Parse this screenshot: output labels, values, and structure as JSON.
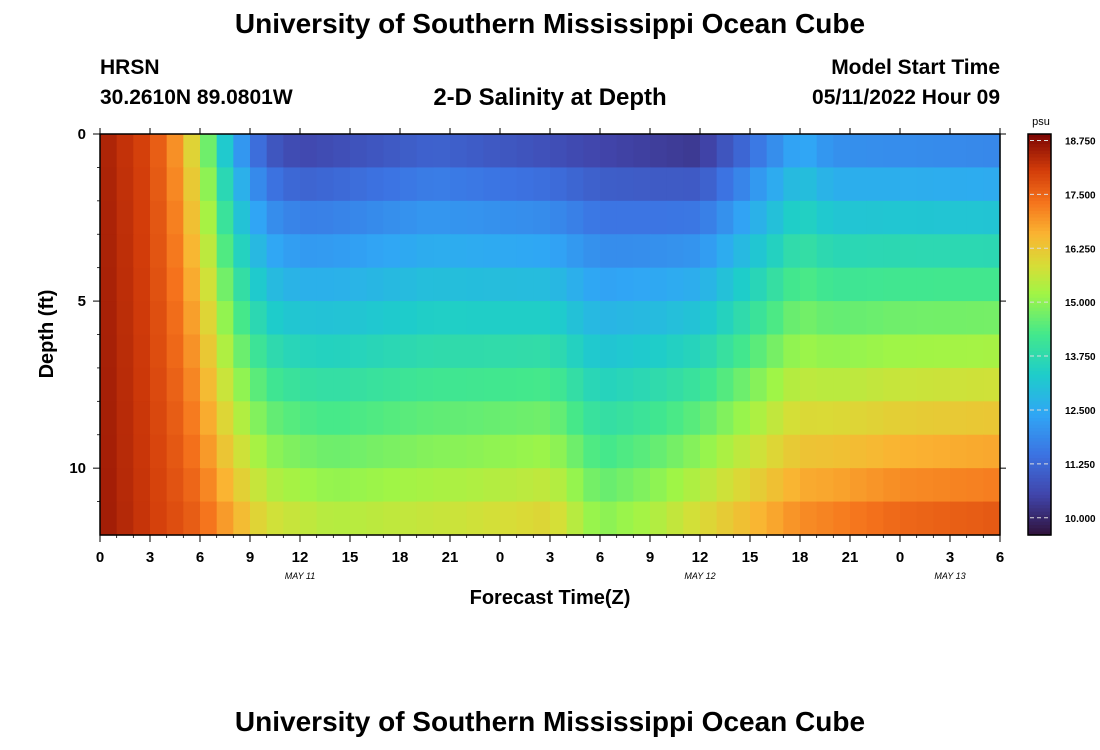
{
  "header": {
    "title": "University of Southern Mississippi Ocean Cube",
    "station": "HRSN",
    "coords": "30.2610N  89.0801W",
    "subtitle": "2-D Salinity at Depth",
    "model_label": "Model Start Time",
    "model_value": "05/11/2022 Hour 09"
  },
  "footer": {
    "title": "University of Southern Mississippi Ocean Cube"
  },
  "chart_data": {
    "type": "heatmap",
    "title": "2-D Salinity at Depth",
    "xlabel": "Forecast Time(Z)",
    "ylabel": "Depth (ft)",
    "x_range_hours": [
      0,
      54
    ],
    "x_start_hour_z": 0,
    "x_tick_labels": [
      "0",
      "3",
      "6",
      "9",
      "12",
      "15",
      "18",
      "21",
      "0",
      "3",
      "6",
      "9",
      "12",
      "15",
      "18",
      "21",
      "0",
      "3",
      "6"
    ],
    "x_tick_hours": [
      0,
      3,
      6,
      9,
      12,
      15,
      18,
      21,
      24,
      27,
      30,
      33,
      36,
      39,
      42,
      45,
      48,
      51,
      54
    ],
    "date_labels": [
      {
        "text": "MAY 11",
        "hour": 12
      },
      {
        "text": "MAY 12",
        "hour": 36
      },
      {
        "text": "MAY 13",
        "hour": 51
      }
    ],
    "y_range_ft": [
      0,
      12
    ],
    "y_tick_labels": [
      "0",
      "5",
      "10"
    ],
    "y_tick_values": [
      0,
      5,
      10
    ],
    "depth_levels": 12,
    "time_steps": 54,
    "colorbar": {
      "unit": "psu",
      "min": 9.6,
      "max": 18.9,
      "labels": [
        "18.750",
        "17.500",
        "16.250",
        "15.000",
        "13.750",
        "12.500",
        "11.250",
        "10.000"
      ],
      "label_values": [
        18.75,
        17.5,
        16.25,
        15.0,
        13.75,
        12.5,
        11.25,
        10.0
      ]
    },
    "model": {
      "description": "salinity(depth,time) approx values read from color",
      "surface_keypoints": [
        [
          0,
          18.5
        ],
        [
          3,
          17.9
        ],
        [
          5,
          16.6
        ],
        [
          6.5,
          14.5
        ],
        [
          8,
          12.2
        ],
        [
          10,
          10.6
        ],
        [
          12,
          10.2
        ],
        [
          20,
          10.8
        ],
        [
          28,
          10.3
        ],
        [
          36,
          9.9
        ],
        [
          39,
          11.0
        ],
        [
          42,
          12.2
        ],
        [
          44,
          11.6
        ],
        [
          54,
          11.4
        ]
      ],
      "bottom_keypoints": [
        [
          0,
          18.6
        ],
        [
          6,
          17.6
        ],
        [
          10,
          16.0
        ],
        [
          14,
          15.6
        ],
        [
          22,
          15.9
        ],
        [
          27,
          16.2
        ],
        [
          30,
          15.1
        ],
        [
          33,
          15.5
        ],
        [
          36,
          16.1
        ],
        [
          42,
          17.2
        ],
        [
          48,
          17.7
        ],
        [
          54,
          17.9
        ]
      ]
    }
  }
}
